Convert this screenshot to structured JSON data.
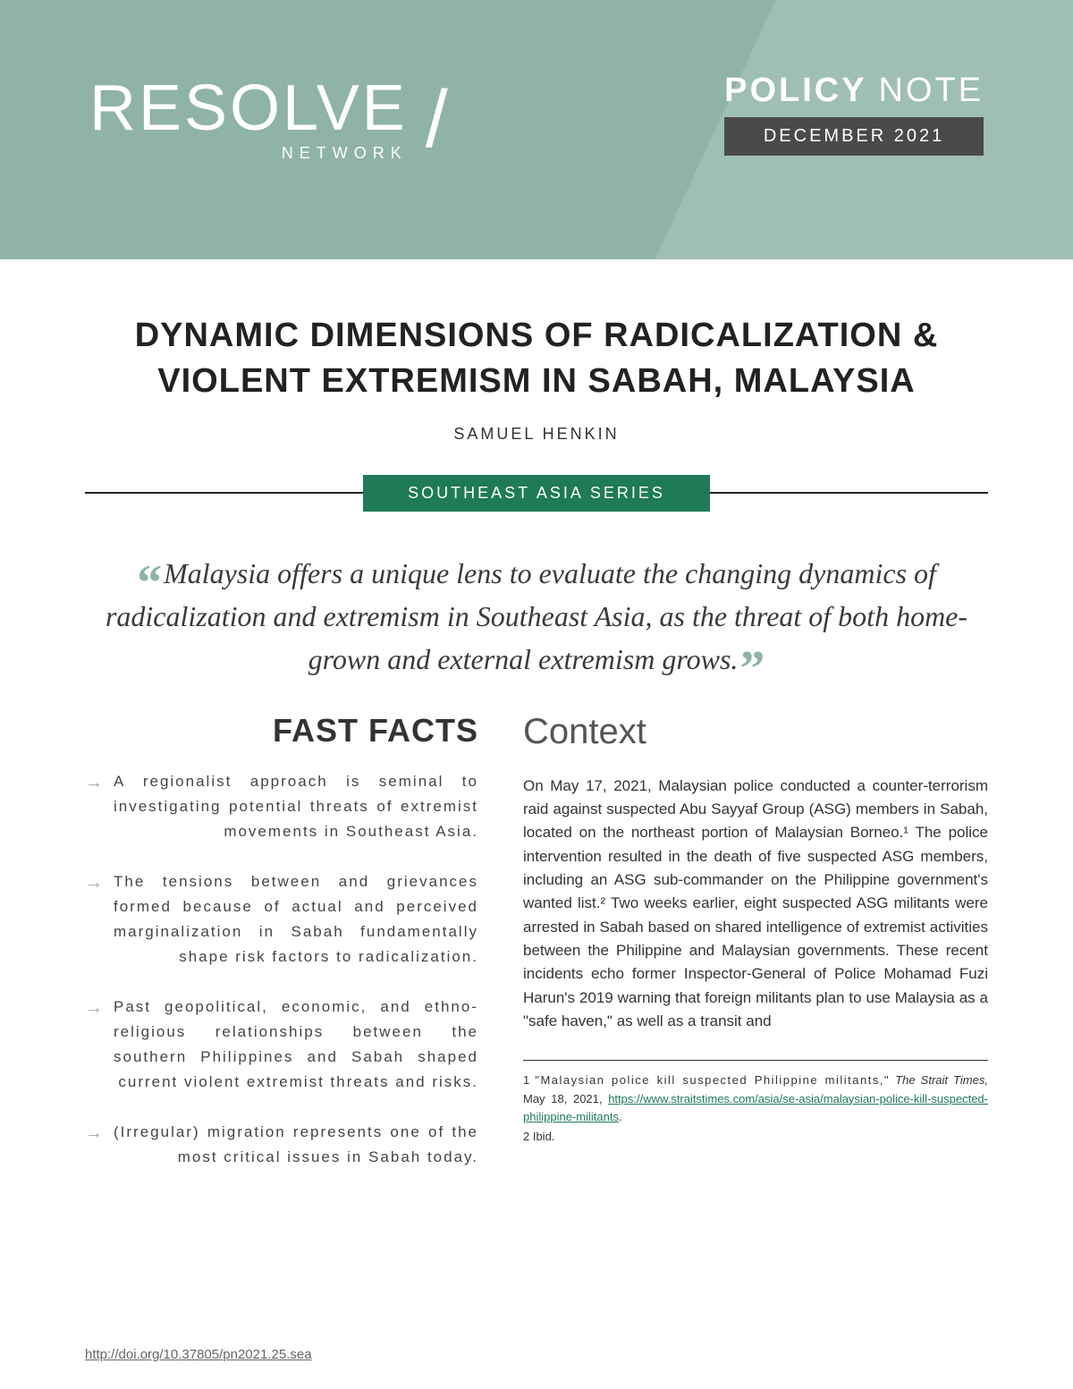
{
  "header": {
    "logo_main": "RESOLVE",
    "logo_sub": "NETWORK",
    "policy_label_bold": "POLICY",
    "policy_label_thin": "NOTE",
    "policy_date": "DECEMBER 2021"
  },
  "title": "DYNAMIC DIMENSIONS OF RADICALIZATION & VIOLENT EXTREMISM IN SABAH, MALAYSIA",
  "author": "SAMUEL HENKIN",
  "series": "SOUTHEAST ASIA SERIES",
  "pull_quote": "Malaysia offers a unique lens to evaluate the changing dynamics of radicalization and extremism in Southeast Asia, as the threat of both home-grown and external extremism grows.",
  "fast_facts": {
    "heading": "FAST FACTS",
    "items": [
      "A regionalist approach is seminal to investigating potential threats of extremist movements in Southeast Asia.",
      "The tensions between and grievances formed because of actual and perceived marginalization in Sabah fundamentally shape risk factors to radicalization.",
      "Past geopolitical, economic, and ethno-religious relationships between the southern Philippines and Sabah shaped current violent extremist threats and risks.",
      "(Irregular) migration represents one of the most critical issues in Sabah today."
    ]
  },
  "context": {
    "heading": "Context",
    "body": "On May 17, 2021, Malaysian police conducted a counter-terrorism raid against suspected Abu Sayyaf Group (ASG) members in Sabah, located on the northeast portion of Malaysian Borneo.¹ The police intervention resulted in the death of five suspected ASG members, including an ASG sub-commander on the Philippine government's wanted list.² Two weeks earlier, eight suspected ASG militants were arrested in Sabah based on shared intelligence of extremist activities between the Philippine and Malaysian governments. These recent incidents echo former Inspector-General of Police Mohamad Fuzi Harun's 2019 warning that foreign militants plan to use Malaysia as a \"safe haven,\" as well as a transit and"
  },
  "footnotes": {
    "fn1_num": "1",
    "fn1_title": "\"Malaysian police kill suspected Philippine militants,\"",
    "fn1_source": "The Strait Times,",
    "fn1_date": "May 18, 2021,",
    "fn1_url_text": "https://www.straitstimes.com/asia/se-asia/malaysian-police-kill-suspected-philippine-militants",
    "fn2": "2 Ibid."
  },
  "doi": "http://doi.org/10.37805/pn2021.25.sea"
}
